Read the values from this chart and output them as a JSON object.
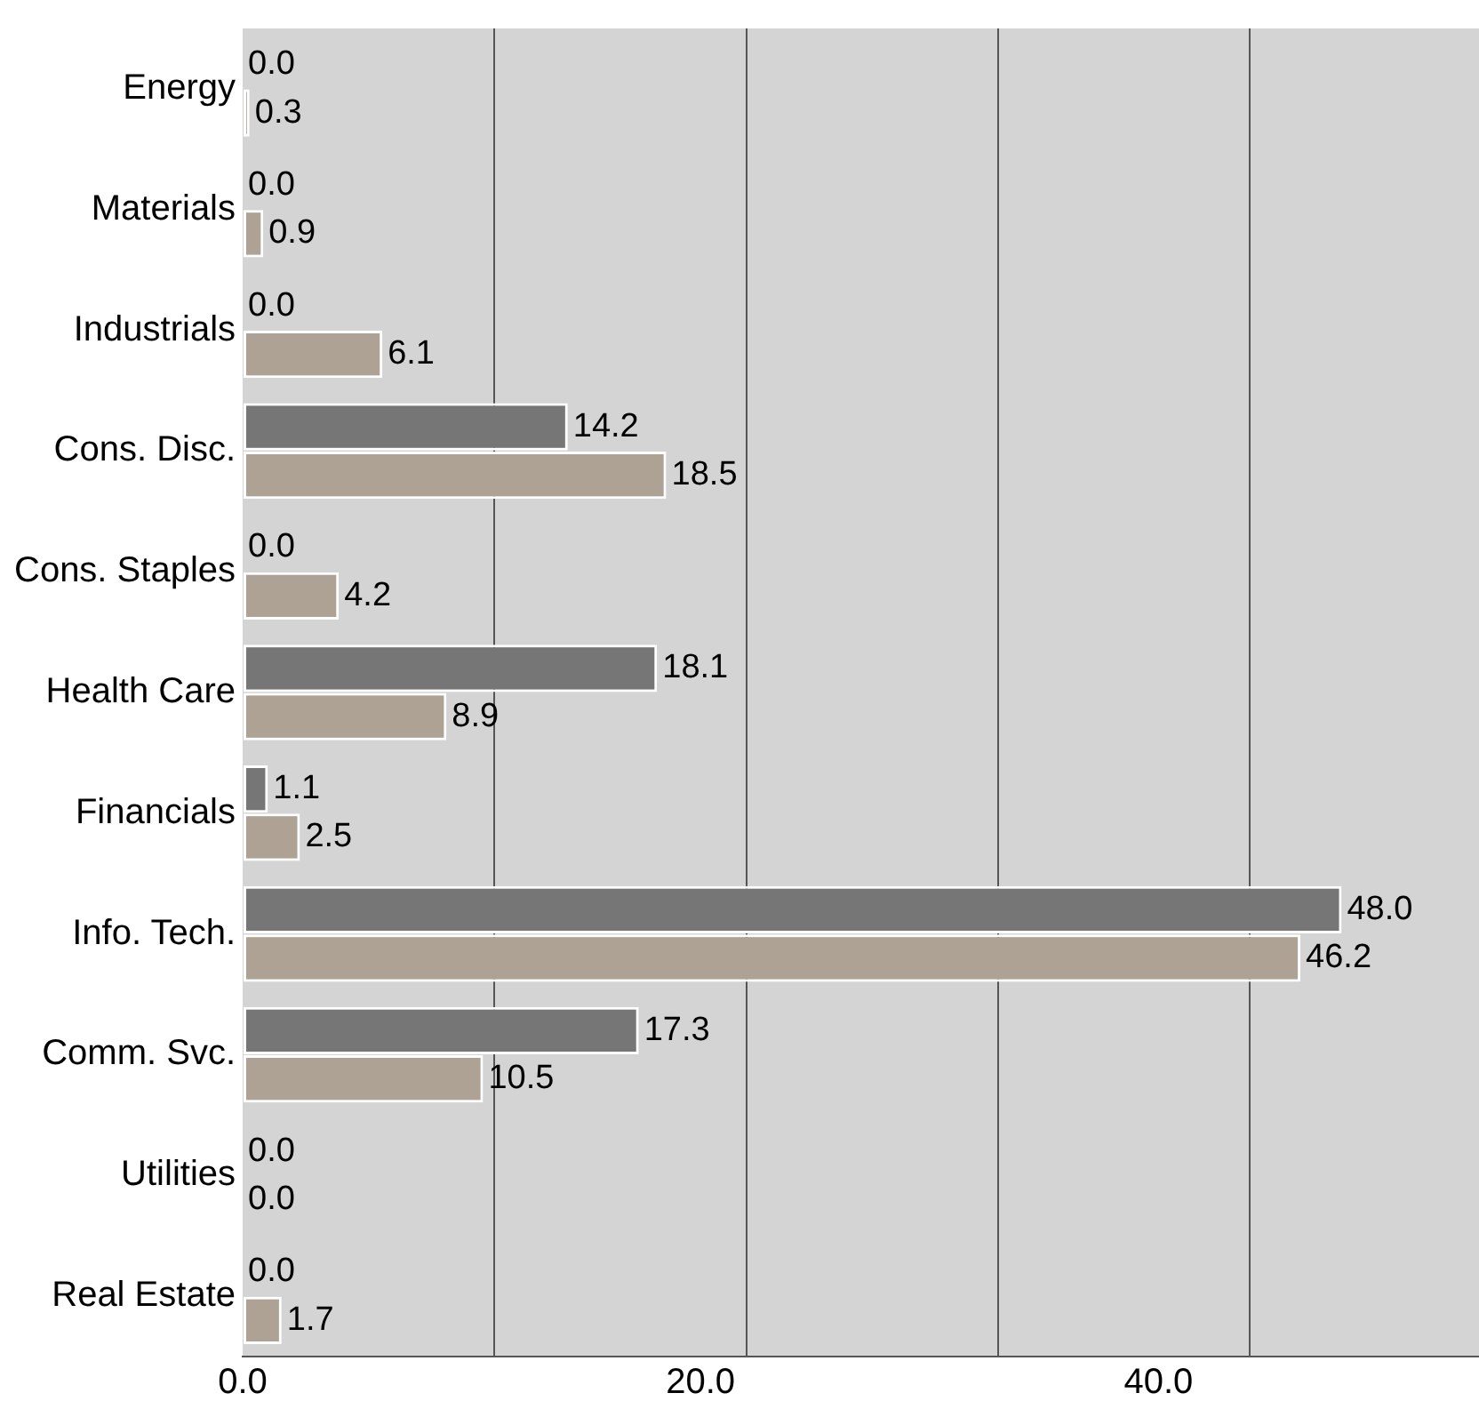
{
  "chart_data": {
    "type": "bar",
    "orientation": "horizontal",
    "categories": [
      "Energy",
      "Materials",
      "Industrials",
      "Cons. Disc.",
      "Cons. Staples",
      "Health Care",
      "Financials",
      "Info. Tech.",
      "Comm. Svc.",
      "Utilities",
      "Real Estate"
    ],
    "series": [
      {
        "color": "#767676",
        "values": [
          0.0,
          0.0,
          0.0,
          14.2,
          0.0,
          18.1,
          1.1,
          48.0,
          17.3,
          0.0,
          0.0
        ],
        "value_labels": [
          "0.0",
          "0.0",
          "0.0",
          "14.2",
          "0.0",
          "18.1",
          "1.1",
          "48.0",
          "17.3",
          "0.0",
          "0.0"
        ]
      },
      {
        "color": "#ada293",
        "values": [
          0.3,
          0.9,
          6.1,
          18.5,
          4.2,
          8.9,
          2.5,
          46.2,
          10.5,
          0.0,
          1.7
        ],
        "value_labels": [
          "0.3",
          "0.9",
          "6.1",
          "18.5",
          "4.2",
          "8.9",
          "2.5",
          "46.2",
          "10.5",
          "0.0",
          "1.7"
        ]
      }
    ],
    "xlim": [
      0,
      54
    ],
    "xticks": [
      {
        "value": 0,
        "label": "0.0"
      },
      {
        "value": 11,
        "label": null
      },
      {
        "value": 20,
        "label": "20.0"
      },
      {
        "value": 22,
        "label": null
      },
      {
        "value": 33,
        "label": null
      },
      {
        "value": 40,
        "label": "40.0"
      },
      {
        "value": 44,
        "label": null
      }
    ],
    "grid": "x",
    "legend": false
  }
}
